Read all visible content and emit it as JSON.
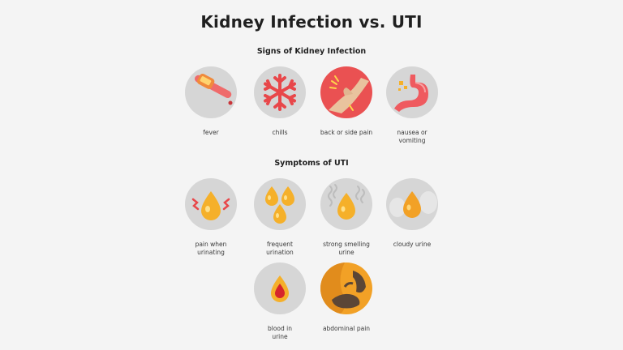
{
  "title": "Kidney Infection vs. UTI",
  "kidney_section": {
    "heading": "Signs of Kidney Infection",
    "items": [
      {
        "label": "fever",
        "icon": "thermometer-icon"
      },
      {
        "label": "chills",
        "icon": "snowflake-icon"
      },
      {
        "label": "back or side pain",
        "icon": "back-pain-icon"
      },
      {
        "label": "nausea or\nvomiting",
        "icon": "stomach-icon"
      }
    ]
  },
  "uti_section": {
    "heading": "Symptoms of UTI",
    "items": [
      {
        "label": "pain when\nurinating",
        "icon": "painful-drop-icon"
      },
      {
        "label": "frequent\nurination",
        "icon": "multiple-drops-icon"
      },
      {
        "label": "strong smelling\nurine",
        "icon": "odor-drop-icon"
      },
      {
        "label": "cloudy urine",
        "icon": "cloudy-drop-icon"
      },
      {
        "label": "blood in\nurine",
        "icon": "blood-drop-icon"
      },
      {
        "label": "abdominal pain",
        "icon": "abdomen-pain-icon"
      }
    ]
  },
  "colors": {
    "background": "#f4f4f4",
    "circle": "#d6d6d6",
    "accent_red": "#e8474a",
    "urine_yellow": "#f5b02a",
    "blood_red": "#d6252c"
  }
}
